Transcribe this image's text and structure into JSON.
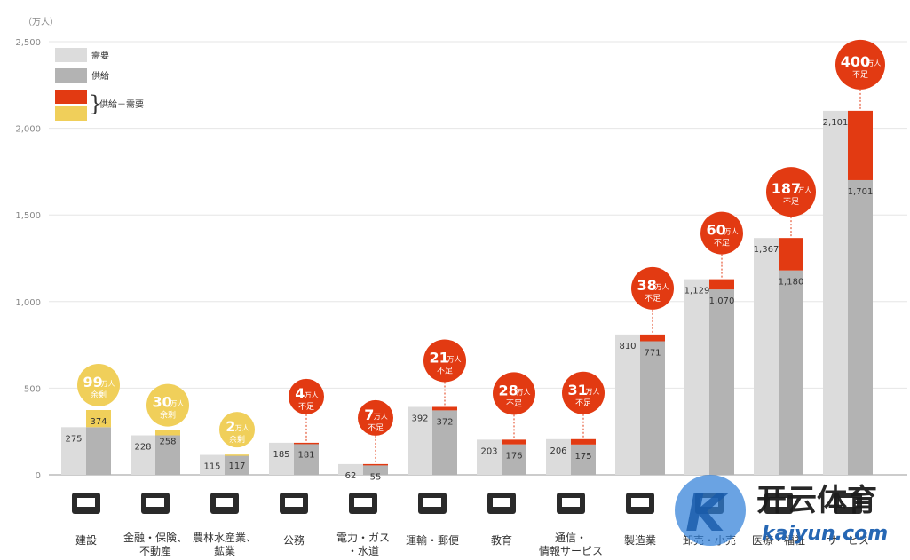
{
  "chart_data": {
    "type": "bar",
    "unit_label": "（万人）",
    "ylim": [
      0,
      2500
    ],
    "yticks": [
      "0",
      "500",
      "1,000",
      "1,500",
      "2,000",
      "2,500"
    ],
    "ytick_values": [
      0,
      500,
      1000,
      1500,
      2000,
      2500
    ],
    "legend": {
      "demand": "需要",
      "supply": "供給",
      "gap": "供給－需要",
      "demand_color": "#dcdcdc",
      "supply_color": "#b3b3b3",
      "shortage_color": "#e23a12",
      "surplus_color": "#f0cf5a"
    },
    "categories": [
      [
        "建設"
      ],
      [
        "金融・保険、",
        "不動産"
      ],
      [
        "農林水産業、",
        "鉱業"
      ],
      [
        "公務"
      ],
      [
        "電力・ガス",
        "・水道"
      ],
      [
        "運輸・郵便"
      ],
      [
        "教育"
      ],
      [
        "通信・",
        "情報サービス"
      ],
      [
        "製造業"
      ],
      [
        "卸売・小売"
      ],
      [
        "医療・福祉"
      ],
      [
        "サービス"
      ]
    ],
    "series": [
      {
        "name": "需要",
        "values": [
          275,
          228,
          115,
          185,
          62,
          392,
          203,
          206,
          810,
          1129,
          1367,
          2101
        ],
        "labels": [
          "275",
          "228",
          "115",
          "185",
          "62",
          "392",
          "203",
          "206",
          "810",
          "1,129",
          "1,367",
          "2,101"
        ]
      },
      {
        "name": "供給",
        "values": [
          374,
          258,
          117,
          181,
          55,
          372,
          176,
          175,
          771,
          1070,
          1180,
          1701
        ],
        "labels": [
          "374",
          "258",
          "117",
          "181",
          "55",
          "372",
          "176",
          "175",
          "771",
          "1,070",
          "1,180",
          "1,701"
        ]
      }
    ],
    "bubbles": [
      {
        "value": "99",
        "unit": "万人",
        "text": "余剰",
        "type": "surplus"
      },
      {
        "value": "30",
        "unit": "万人",
        "text": "余剰",
        "type": "surplus"
      },
      {
        "value": "2",
        "unit": "万人",
        "text": "余剰",
        "type": "surplus"
      },
      {
        "value": "4",
        "unit": "万人",
        "text": "不足",
        "type": "shortage"
      },
      {
        "value": "7",
        "unit": "万人",
        "text": "不足",
        "type": "shortage"
      },
      {
        "value": "21",
        "unit": "万人",
        "text": "不足",
        "type": "shortage"
      },
      {
        "value": "28",
        "unit": "万人",
        "text": "不足",
        "type": "shortage"
      },
      {
        "value": "31",
        "unit": "万人",
        "text": "不足",
        "type": "shortage"
      },
      {
        "value": "38",
        "unit": "万人",
        "text": "不足",
        "type": "shortage"
      },
      {
        "value": "60",
        "unit": "万人",
        "text": "不足",
        "type": "shortage"
      },
      {
        "value": "187",
        "unit": "万人",
        "text": "不足",
        "type": "shortage"
      },
      {
        "value": "400",
        "unit": "万人",
        "text": "不足",
        "type": "shortage"
      }
    ]
  },
  "watermark": {
    "title": "开云体育",
    "domain": "kaiyun.com"
  }
}
